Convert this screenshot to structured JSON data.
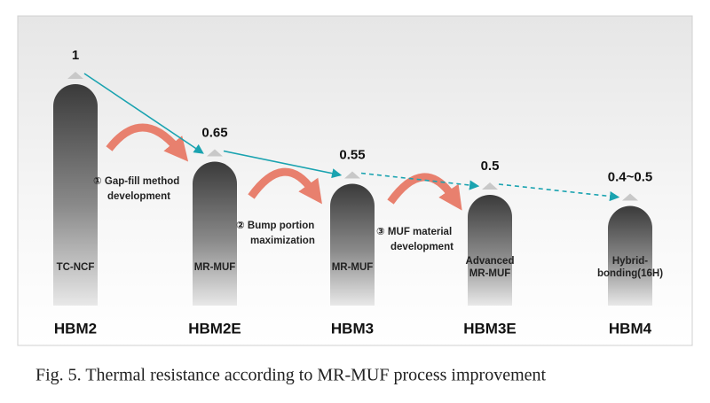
{
  "chart_data": {
    "type": "bar",
    "categories": [
      "HBM2",
      "HBM2E",
      "HBM3",
      "HBM3E",
      "HBM4"
    ],
    "values": [
      1,
      0.65,
      0.55,
      0.5,
      0.45
    ],
    "value_labels": [
      "1",
      "0.65",
      "0.55",
      "0.5",
      "0.4~0.5"
    ],
    "bar_labels": [
      [
        "TC-NCF"
      ],
      [
        "MR-MUF"
      ],
      [
        "MR-MUF"
      ],
      [
        "Advanced",
        "MR-MUF"
      ],
      [
        "Hybrid-",
        "bonding(16H)"
      ]
    ],
    "steps": [
      [
        "① Gap-fill method",
        "development"
      ],
      [
        "② Bump portion",
        "maximization"
      ],
      [
        "③ MUF material",
        "development"
      ]
    ],
    "trend_color": "#1aa3b0",
    "caption": "Fig. 5.  Thermal resistance according to MR-MUF process improvement"
  }
}
